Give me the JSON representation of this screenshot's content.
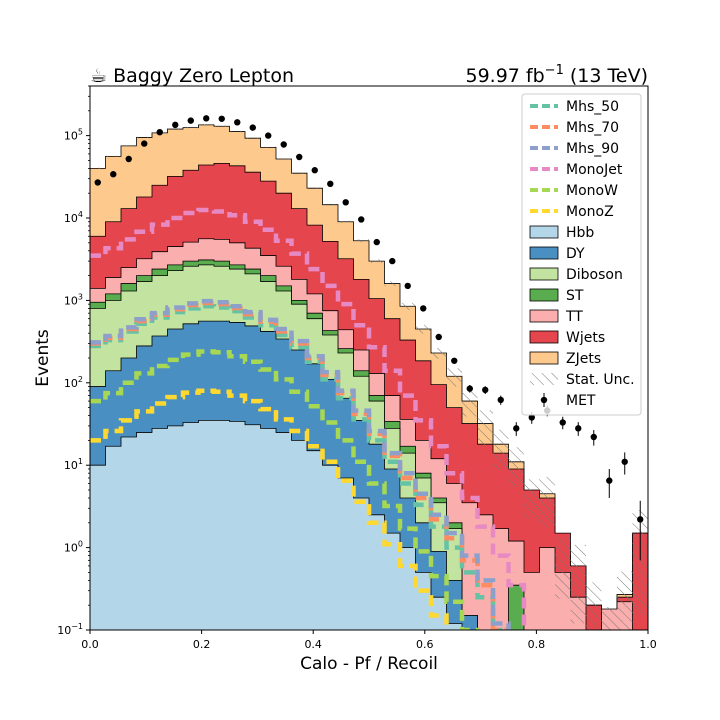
{
  "chart_data": {
    "type": "histogram-stack",
    "title_left": "☕ Baggy Zero Lepton",
    "title_right_value": "59.97 fb",
    "title_right_exp": "−1",
    "title_right_suffix": " (13 TeV)",
    "xlabel": "Calo - Pf / Recoil",
    "ylabel": "Events",
    "xlim": [
      0.0,
      1.0
    ],
    "ylim": [
      0.1,
      400000
    ],
    "yscale": "log",
    "xticks": [
      "0.0",
      "0.2",
      "0.4",
      "0.6",
      "0.8",
      "1.0"
    ],
    "yticks": [
      {
        "base": "10",
        "exp": "−1",
        "value": 0.1
      },
      {
        "base": "10",
        "exp": "0",
        "value": 1
      },
      {
        "base": "10",
        "exp": "1",
        "value": 10
      },
      {
        "base": "10",
        "exp": "2",
        "value": 100
      },
      {
        "base": "10",
        "exp": "3",
        "value": 1000
      },
      {
        "base": "10",
        "exp": "4",
        "value": 10000
      },
      {
        "base": "10",
        "exp": "5",
        "value": 100000
      }
    ],
    "nbins": 36,
    "bin_width": 0.02778,
    "stack_order": [
      "Hbb",
      "DY",
      "Diboson",
      "ST",
      "TT",
      "Wjets",
      "ZJets"
    ],
    "stacked_totals": {
      "Hbb": [
        10,
        17,
        22,
        25,
        28,
        30,
        33,
        35,
        35,
        34,
        31,
        28,
        25,
        20,
        15,
        10,
        7,
        4,
        2.5,
        1.5,
        1,
        0.5,
        0.25,
        0.12,
        0.05,
        0.02,
        0.01,
        0.01,
        0.01,
        0.01,
        0.01,
        0.01,
        0.01,
        0.01,
        0.01,
        0.01
      ],
      "DY": [
        90,
        140,
        200,
        280,
        370,
        450,
        520,
        560,
        560,
        540,
        490,
        420,
        340,
        250,
        170,
        110,
        65,
        35,
        18,
        9,
        4,
        2,
        0.9,
        0.4,
        0.15,
        0.08,
        0.01,
        0.01,
        0.01,
        0.01,
        0.01,
        0.01,
        0.01,
        0.01,
        0.01,
        0.01
      ],
      "Diboson": [
        800,
        1000,
        1300,
        1700,
        2000,
        2300,
        2600,
        2700,
        2600,
        2400,
        2100,
        1700,
        1300,
        900,
        600,
        380,
        230,
        120,
        60,
        28,
        14,
        7,
        3.5,
        1.7,
        0.12,
        0.05,
        0.01,
        0.01,
        0.01,
        0.01,
        0.01,
        0.01,
        0.01,
        0.01,
        0.01,
        0.01
      ],
      "ST": [
        950,
        1200,
        1600,
        2000,
        2400,
        2700,
        3000,
        3100,
        3000,
        2700,
        2400,
        2000,
        1500,
        1000,
        700,
        430,
        260,
        140,
        70,
        34,
        17,
        8,
        4,
        2,
        0.15,
        0.06,
        0.05,
        0.35,
        0.02,
        0.01,
        0.01,
        0.01,
        0.01,
        0.01,
        0.01,
        0.01
      ],
      "TT": [
        1400,
        1900,
        2500,
        3200,
        3900,
        4500,
        5100,
        5600,
        5500,
        5000,
        4300,
        3500,
        2600,
        1800,
        1200,
        750,
        440,
        250,
        130,
        70,
        36,
        20,
        12,
        6,
        3.5,
        2.5,
        1.7,
        1.2,
        0.5,
        1.0,
        0.5,
        0.25,
        0.1,
        0.18,
        0.22,
        0.1
      ],
      "Wjets": [
        6000,
        9000,
        13000,
        18000,
        25000,
        32000,
        38000,
        44000,
        46000,
        43000,
        36000,
        28000,
        20000,
        13000,
        8200,
        5200,
        3200,
        1800,
        1050,
        600,
        330,
        185,
        95,
        50,
        32,
        18,
        14,
        9,
        5,
        4,
        1.5,
        0.6,
        0.2,
        0.1,
        0.25,
        1.5
      ],
      "ZJets": [
        40000,
        56000,
        75000,
        95000,
        108000,
        120000,
        125000,
        135000,
        130000,
        112000,
        93000,
        72000,
        52000,
        35000,
        23000,
        14500,
        9000,
        5300,
        3000,
        1600,
        850,
        450,
        230,
        120,
        60,
        32,
        18,
        11,
        4.5,
        4.5,
        0.8,
        0.6,
        0.2,
        0.1,
        0.27,
        1.5
      ]
    },
    "stat_unc_rel": [
      0.02,
      0.02,
      0.02,
      0.02,
      0.02,
      0.02,
      0.02,
      0.02,
      0.02,
      0.02,
      0.02,
      0.02,
      0.02,
      0.02,
      0.02,
      0.02,
      0.03,
      0.04,
      0.05,
      0.07,
      0.1,
      0.12,
      0.15,
      0.25,
      0.35,
      0.45,
      0.5,
      0.5,
      0.5,
      0.6,
      0.7,
      0.8,
      0.9,
      0.9,
      0.9,
      0.9
    ],
    "signals": [
      {
        "name": "Mhs_50",
        "color": "#66c2a5",
        "values": [
          280,
          330,
          420,
          520,
          620,
          720,
          800,
          850,
          820,
          740,
          620,
          500,
          380,
          270,
          180,
          110,
          65,
          36,
          20,
          11,
          6,
          3.3,
          1.8,
          1.0,
          0.5,
          0.25,
          0.1,
          0.05,
          0.05,
          0.05,
          0.05,
          0.05,
          0.05,
          0.05,
          0.05,
          0.05
        ]
      },
      {
        "name": "Mhs_70",
        "color": "#fc8d62",
        "values": [
          300,
          350,
          450,
          560,
          670,
          780,
          880,
          930,
          900,
          810,
          680,
          550,
          420,
          300,
          200,
          125,
          75,
          42,
          24,
          13,
          7,
          4,
          2.2,
          1.3,
          0.7,
          0.35,
          0.1,
          0.05,
          0.05,
          0.05,
          0.05,
          0.05,
          0.05,
          0.05,
          0.05,
          0.05
        ]
      },
      {
        "name": "Mhs_90",
        "color": "#8da0cb",
        "values": [
          310,
          370,
          470,
          590,
          700,
          820,
          920,
          980,
          950,
          850,
          720,
          580,
          450,
          320,
          210,
          135,
          80,
          46,
          26,
          14,
          8,
          4.5,
          2.5,
          1.5,
          0.8,
          0.4,
          0.12,
          0.05,
          0.05,
          0.05,
          0.05,
          0.05,
          0.05,
          0.05,
          0.05,
          0.05
        ]
      },
      {
        "name": "MonoJet",
        "color": "#e78ac3",
        "values": [
          3500,
          4300,
          5500,
          6800,
          8300,
          10000,
          11500,
          12500,
          12000,
          10800,
          9000,
          7200,
          5300,
          3700,
          2400,
          1500,
          900,
          500,
          270,
          140,
          70,
          35,
          17,
          8,
          4,
          1.8,
          0.8,
          0.35,
          0.05,
          0.05,
          0.05,
          0.05,
          0.05,
          0.05,
          0.05,
          0.05
        ]
      },
      {
        "name": "MonoW",
        "color": "#a6d854",
        "values": [
          60,
          75,
          100,
          130,
          160,
          190,
          220,
          240,
          235,
          210,
          180,
          145,
          110,
          78,
          52,
          33,
          20,
          11,
          6,
          3.2,
          1.7,
          0.9,
          0.45,
          0.22,
          0.1,
          0.05,
          0.05,
          0.05,
          0.05,
          0.05,
          0.05,
          0.05,
          0.05,
          0.05,
          0.05,
          0.05
        ]
      },
      {
        "name": "MonoZ",
        "color": "#ffd92f",
        "values": [
          20,
          26,
          35,
          45,
          56,
          67,
          76,
          80,
          78,
          70,
          60,
          48,
          36,
          26,
          17,
          11,
          6.5,
          3.6,
          2,
          1.1,
          0.6,
          0.3,
          0.15,
          0.08,
          0.05,
          0.05,
          0.05,
          0.05,
          0.05,
          0.05,
          0.05,
          0.05,
          0.05,
          0.05,
          0.05,
          0.05
        ]
      }
    ],
    "data": {
      "name": "MET",
      "x": [
        0.0139,
        0.0417,
        0.0694,
        0.0972,
        0.125,
        0.1528,
        0.1806,
        0.2083,
        0.2361,
        0.2639,
        0.2917,
        0.3194,
        0.3472,
        0.375,
        0.4028,
        0.4306,
        0.4583,
        0.4861,
        0.5139,
        0.5417,
        0.5694,
        0.5972,
        0.625,
        0.6528,
        0.6806,
        0.7083,
        0.7361,
        0.7639,
        0.7917,
        0.8194,
        0.8472,
        0.875,
        0.9028,
        0.9306,
        0.9583,
        0.9861
      ],
      "y": [
        27000,
        34000,
        52000,
        80000,
        110000,
        135000,
        152000,
        162000,
        160000,
        145000,
        125000,
        100000,
        78000,
        55000,
        38000,
        26000,
        15500,
        9600,
        5100,
        3000,
        1500,
        800,
        360,
        185,
        85,
        82,
        62,
        28,
        38,
        46,
        33,
        28,
        22,
        6.5,
        11,
        2.2
      ],
      "err": [
        160,
        180,
        230,
        280,
        330,
        370,
        390,
        400,
        400,
        380,
        350,
        320,
        280,
        235,
        195,
        160,
        125,
        98,
        71,
        55,
        39,
        28,
        19,
        14,
        9,
        9,
        8,
        5.3,
        6.2,
        6.8,
        5.7,
        5.3,
        4.7,
        2.5,
        3.3,
        1.5
      ]
    },
    "legend_location": "upper right",
    "legend": [
      {
        "label": "Mhs_50",
        "kind": "line",
        "color": "#66c2a5"
      },
      {
        "label": "Mhs_70",
        "kind": "line",
        "color": "#fc8d62"
      },
      {
        "label": "Mhs_90",
        "kind": "line",
        "color": "#8da0cb"
      },
      {
        "label": "MonoJet",
        "kind": "line",
        "color": "#e78ac3"
      },
      {
        "label": "MonoW",
        "kind": "line",
        "color": "#a6d854"
      },
      {
        "label": "MonoZ",
        "kind": "line",
        "color": "#ffd92f"
      },
      {
        "label": "Hbb",
        "kind": "patch",
        "color": "#b3d6e8"
      },
      {
        "label": "DY",
        "kind": "patch",
        "color": "#4a8fc2"
      },
      {
        "label": "Diboson",
        "kind": "patch",
        "color": "#c3e4a0"
      },
      {
        "label": "ST",
        "kind": "patch",
        "color": "#59ad4e"
      },
      {
        "label": "TT",
        "kind": "patch",
        "color": "#fbaeae"
      },
      {
        "label": "Wjets",
        "kind": "patch",
        "color": "#e5454c"
      },
      {
        "label": "ZJets",
        "kind": "patch",
        "color": "#fdc98d"
      },
      {
        "label": "Stat. Unc.",
        "kind": "hatch",
        "color": "#888888"
      },
      {
        "label": "MET",
        "kind": "point",
        "color": "#000000"
      }
    ],
    "colors": {
      "Hbb": "#b3d6e8",
      "DY": "#4a8fc2",
      "Diboson": "#c3e4a0",
      "ST": "#59ad4e",
      "TT": "#fbaeae",
      "Wjets": "#e5454c",
      "ZJets": "#fdc98d"
    }
  }
}
